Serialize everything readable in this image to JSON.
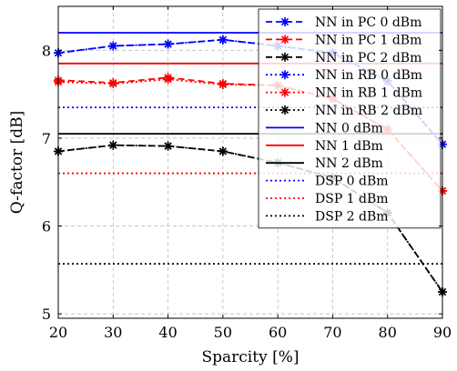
{
  "chart_data": {
    "type": "line",
    "title": "",
    "xlabel": "Sparcity [%]",
    "ylabel": "Q-factor [dB]",
    "xlim": [
      20,
      90
    ],
    "ylim": [
      4.95,
      8.5
    ],
    "xticks": [
      20,
      30,
      40,
      50,
      60,
      70,
      80,
      90
    ],
    "yticks": [
      5,
      6,
      7,
      8
    ],
    "grid": true,
    "legend_position": "top-right",
    "x": [
      20,
      30,
      40,
      50,
      60,
      70,
      80,
      90
    ],
    "series": [
      {
        "name": "NN in PC 0 dBm",
        "kind": "marker-line",
        "color": "#0000ff",
        "dash": "dashed",
        "marker": "star",
        "values": [
          7.97,
          8.05,
          8.07,
          8.12,
          8.05,
          7.97,
          7.65,
          6.93
        ]
      },
      {
        "name": "NN in PC 1 dBm",
        "kind": "marker-line",
        "color": "#ff0000",
        "dash": "dashed",
        "marker": "star",
        "values": [
          7.66,
          7.63,
          7.69,
          7.62,
          7.6,
          7.45,
          7.1,
          6.4
        ]
      },
      {
        "name": "NN in PC 2 dBm",
        "kind": "marker-line",
        "color": "#000000",
        "dash": "dashed",
        "marker": "star",
        "values": [
          6.85,
          6.92,
          6.91,
          6.85,
          6.72,
          6.55,
          6.15,
          5.25
        ]
      },
      {
        "name": "NN in RB 0 dBm",
        "kind": "marker-line",
        "color": "#0000ff",
        "dash": "dotted",
        "marker": "star",
        "values": [
          7.97,
          8.05,
          8.07,
          8.12,
          8.05,
          7.97,
          7.65,
          6.93
        ]
      },
      {
        "name": "NN in RB 1 dBm",
        "kind": "marker-line",
        "color": "#ff0000",
        "dash": "dotted",
        "marker": "star",
        "values": [
          7.64,
          7.62,
          7.67,
          7.61,
          7.6,
          7.45,
          7.1,
          6.4
        ]
      },
      {
        "name": "NN in RB 2 dBm",
        "kind": "marker-line",
        "color": "#000000",
        "dash": "dotted",
        "marker": "star",
        "values": [
          6.85,
          6.92,
          6.91,
          6.85,
          6.72,
          6.55,
          6.15,
          5.25
        ]
      },
      {
        "name": "NN 0 dBm",
        "kind": "hline",
        "color": "#0000ff",
        "dash": "solid",
        "value": 8.2
      },
      {
        "name": "NN 1 dBm",
        "kind": "hline",
        "color": "#ff0000",
        "dash": "solid",
        "value": 7.85
      },
      {
        "name": "NN 2 dBm",
        "kind": "hline",
        "color": "#000000",
        "dash": "solid",
        "value": 7.05
      },
      {
        "name": "DSP 0 dBm",
        "kind": "hline",
        "color": "#0000ff",
        "dash": "dotted",
        "value": 7.35
      },
      {
        "name": "DSP 1 dBm",
        "kind": "hline",
        "color": "#ff0000",
        "dash": "dotted",
        "value": 6.6
      },
      {
        "name": "DSP 2 dBm",
        "kind": "hline",
        "color": "#000000",
        "dash": "dotted",
        "value": 5.57
      }
    ]
  }
}
